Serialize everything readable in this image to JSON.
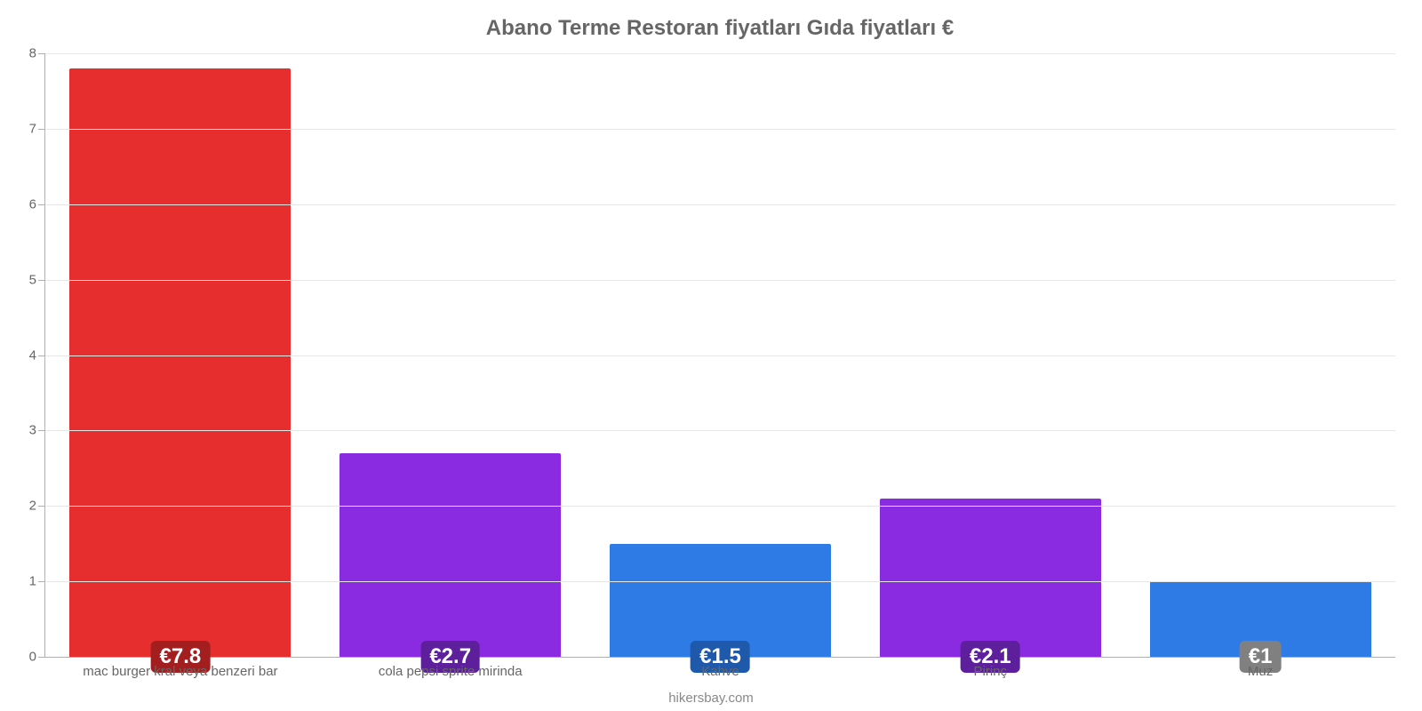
{
  "chart": {
    "type": "bar",
    "title": "Abano Terme Restoran fiyatları Gıda fiyatları €",
    "title_color": "#666666",
    "title_fontsize": 24,
    "footer": "hikersbay.com",
    "footer_color": "#888888",
    "footer_fontsize": 15,
    "background_color": "#ffffff",
    "grid_color": "#e6e6e6",
    "axis_color": "#b0b0b0",
    "tick_label_color": "#666666",
    "tick_label_fontsize": 15,
    "value_label_fontsize": 24,
    "value_label_text_color": "#ffffff",
    "ylim": [
      0,
      8
    ],
    "ytick_step": 1,
    "yticks": [
      {
        "pos": 0,
        "label": "0"
      },
      {
        "pos": 1,
        "label": "1"
      },
      {
        "pos": 2,
        "label": "2"
      },
      {
        "pos": 3,
        "label": "3"
      },
      {
        "pos": 4,
        "label": "4"
      },
      {
        "pos": 5,
        "label": "5"
      },
      {
        "pos": 6,
        "label": "6"
      },
      {
        "pos": 7,
        "label": "7"
      },
      {
        "pos": 8,
        "label": "8"
      }
    ],
    "bar_width_pct": 82,
    "bars": [
      {
        "category": "mac burger kral veya benzeri bar",
        "value": 7.8,
        "display": "€7.8",
        "bar_color": "#e62e2e",
        "badge_color": "#a31e1e"
      },
      {
        "category": "cola pepsi sprite mirinda",
        "value": 2.7,
        "display": "€2.7",
        "bar_color": "#8a2be2",
        "badge_color": "#5e1f9c"
      },
      {
        "category": "Kahve",
        "value": 1.5,
        "display": "€1.5",
        "bar_color": "#2f7be5",
        "badge_color": "#1f59ab"
      },
      {
        "category": "Pirinç",
        "value": 2.1,
        "display": "€2.1",
        "bar_color": "#8a2be2",
        "badge_color": "#5e1f9c"
      },
      {
        "category": "Muz",
        "value": 1.0,
        "display": "€1",
        "bar_color": "#2f7be5",
        "badge_color": "#808080"
      }
    ]
  }
}
